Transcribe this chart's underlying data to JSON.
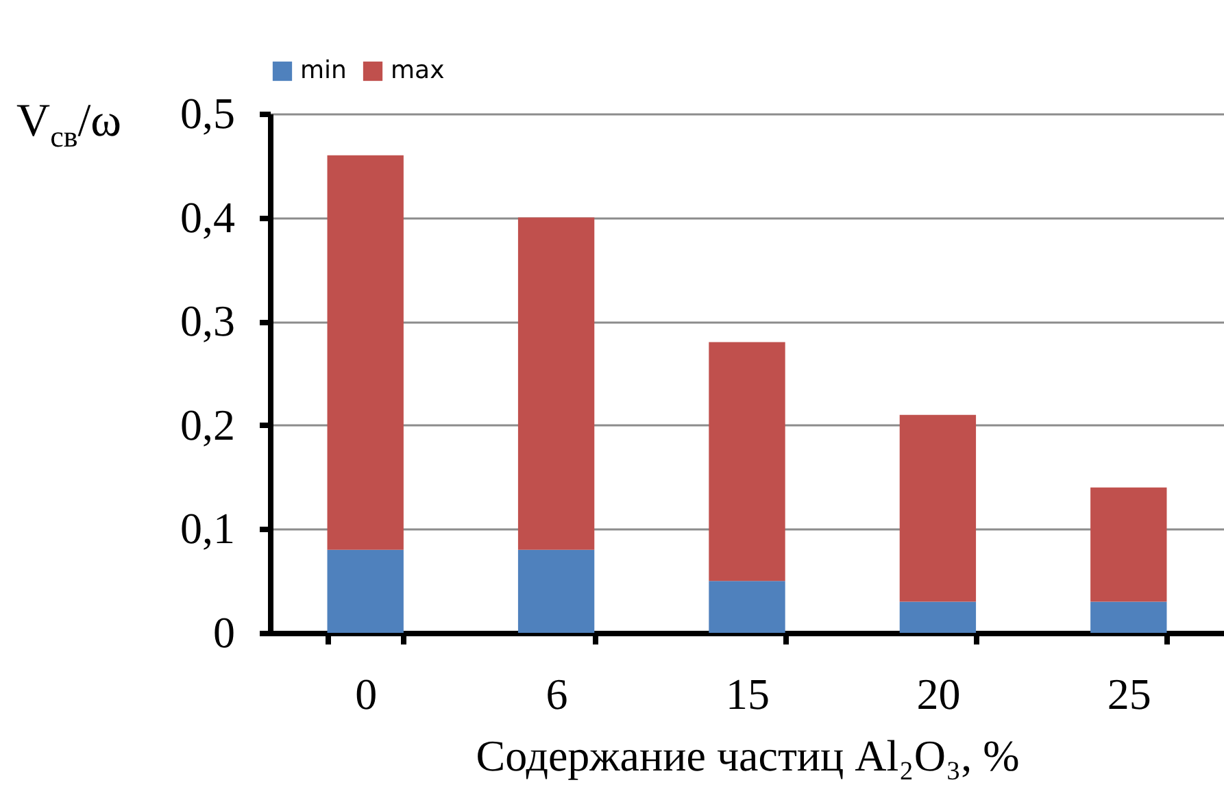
{
  "chart_data": {
    "type": "bar",
    "stacked": true,
    "categories": [
      "0",
      "6",
      "15",
      "20",
      "25"
    ],
    "series": [
      {
        "name": "min",
        "color": "#4f81bd",
        "values": [
          0.08,
          0.08,
          0.05,
          0.03,
          0.03
        ]
      },
      {
        "name": "max",
        "color": "#c0504d",
        "values": [
          0.38,
          0.32,
          0.23,
          0.18,
          0.11
        ]
      }
    ],
    "xlabel": "Содержание частиц Al₂O₃, %",
    "ylabel": "V$_{св}$/ω",
    "ylim": [
      0,
      0.5
    ],
    "yticks": [
      0,
      {
        "value": 0.1,
        "label": "0,1"
      },
      {
        "value": 0.2,
        "label": "0,2"
      },
      {
        "value": 0.3,
        "label": "0,3"
      },
      {
        "value": 0.4,
        "label": "0,4"
      },
      {
        "value": 0.5,
        "label": "0,5"
      }
    ],
    "grid": "y",
    "legend": "top"
  }
}
